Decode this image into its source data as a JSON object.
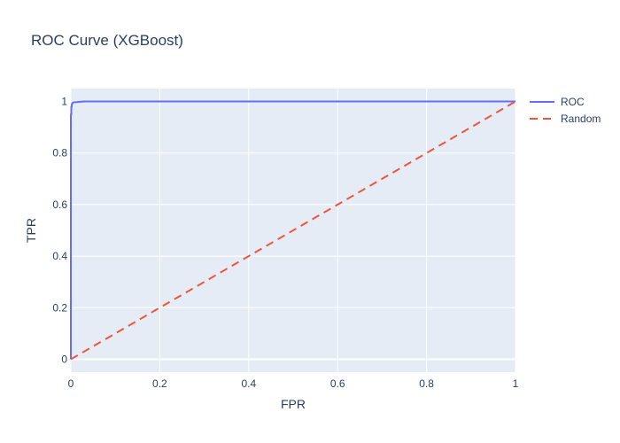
{
  "chart_data": {
    "type": "line",
    "title": "ROC Curve (XGBoost)",
    "xlabel": "FPR",
    "ylabel": "TPR",
    "xlim": [
      0,
      1
    ],
    "ylim": [
      -0.05,
      1.05
    ],
    "x_ticks": [
      0,
      0.2,
      0.4,
      0.6,
      0.8,
      1
    ],
    "x_tick_labels": [
      "0",
      "0.2",
      "0.4",
      "0.6",
      "0.8",
      "1"
    ],
    "y_ticks": [
      0,
      0.2,
      0.4,
      0.6,
      0.8,
      1
    ],
    "y_tick_labels": [
      "0",
      "0.2",
      "0.4",
      "0.6",
      "0.8",
      "1"
    ],
    "grid": true,
    "legend_position": "top-right",
    "series": [
      {
        "name": "ROC",
        "color": "#636efa",
        "dash": "solid",
        "x": [
          0,
          0,
          0.001,
          0.001,
          0.002,
          0.002,
          0.003,
          0.004,
          0.006,
          0.01,
          0.015,
          0.02,
          0.03,
          0.05,
          0.1,
          0.2,
          0.4,
          0.6,
          0.8,
          1
        ],
        "y": [
          0,
          0.95,
          0.95,
          0.98,
          0.98,
          0.99,
          0.99,
          0.995,
          0.997,
          0.997,
          0.998,
          0.999,
          1,
          1,
          1,
          1,
          1,
          1,
          1,
          1
        ]
      },
      {
        "name": "Random",
        "color": "#ef553b",
        "dash": "dash",
        "x": [
          0,
          1
        ],
        "y": [
          0,
          1
        ]
      }
    ]
  }
}
